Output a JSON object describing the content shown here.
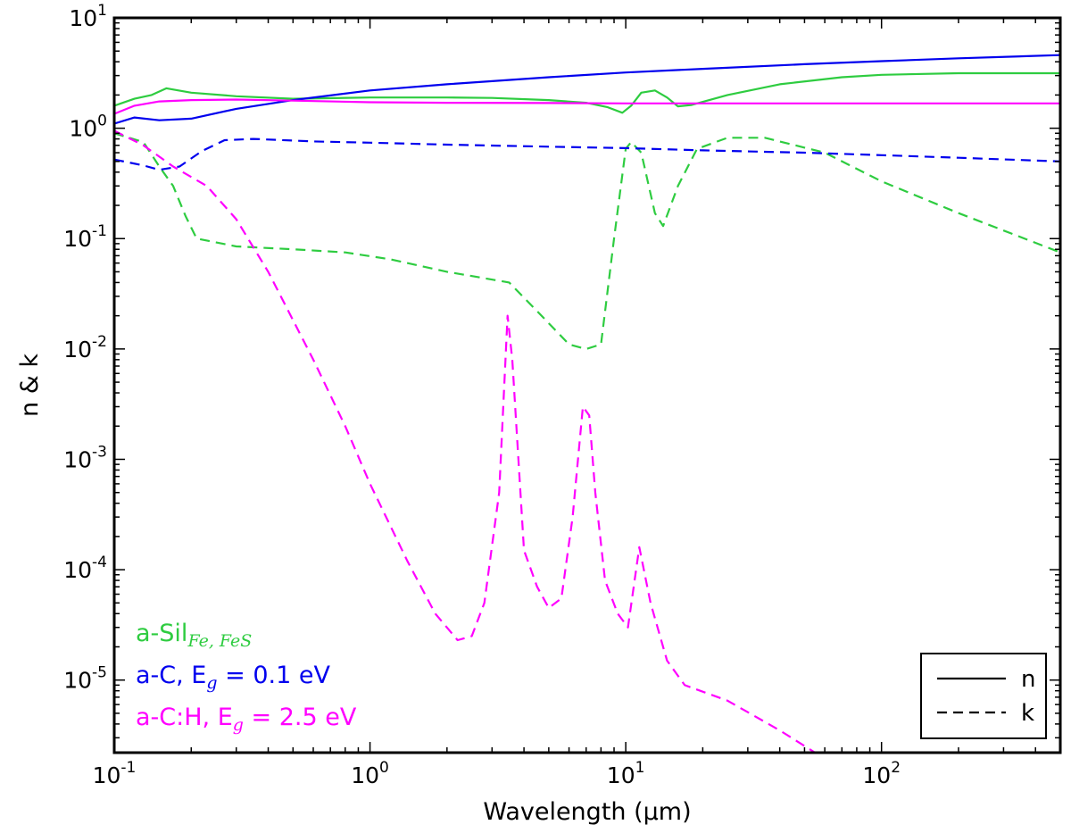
{
  "chart_data": {
    "type": "line",
    "title": "",
    "xlabel": "Wavelength (μm)",
    "ylabel": "n & k",
    "xscale": "log",
    "yscale": "log",
    "xlim": [
      0.1,
      500
    ],
    "ylim": [
      2.2e-06,
      10
    ],
    "x_ticks": [
      {
        "base": "10",
        "exp": "-1",
        "value": 0.1
      },
      {
        "base": "10",
        "exp": "0",
        "value": 1
      },
      {
        "base": "10",
        "exp": "1",
        "value": 10
      },
      {
        "base": "10",
        "exp": "2",
        "value": 100
      }
    ],
    "y_ticks": [
      {
        "base": "10",
        "exp": "1",
        "value": 10
      },
      {
        "base": "10",
        "exp": "0",
        "value": 1
      },
      {
        "base": "10",
        "exp": "-1",
        "value": 0.1
      },
      {
        "base": "10",
        "exp": "-2",
        "value": 0.01
      },
      {
        "base": "10",
        "exp": "-3",
        "value": 0.001
      },
      {
        "base": "10",
        "exp": "-4",
        "value": 0.0001
      },
      {
        "base": "10",
        "exp": "-5",
        "value": 1e-05
      }
    ],
    "legend": {
      "position": "bottom-right",
      "entries": [
        {
          "label": "n",
          "style": "solid"
        },
        {
          "label": "k",
          "style": "dashed"
        }
      ]
    },
    "materials": [
      {
        "name": "a-Sil",
        "sub": "Fe, FeS",
        "color": "#2ecc40"
      },
      {
        "name": "a-C, E",
        "sub": "g",
        "suffix": " = 0.1 eV",
        "color": "#0000ee"
      },
      {
        "name": "a-C:H, E",
        "sub": "g",
        "suffix": " = 2.5 eV",
        "color": "#ff00ff"
      }
    ],
    "series": [
      {
        "name": "a-SilFe,FeS n",
        "material": 0,
        "style": "solid",
        "points": [
          [
            0.1,
            1.6
          ],
          [
            0.12,
            1.85
          ],
          [
            0.14,
            2.0
          ],
          [
            0.16,
            2.3
          ],
          [
            0.2,
            2.1
          ],
          [
            0.3,
            1.95
          ],
          [
            0.5,
            1.85
          ],
          [
            1,
            1.9
          ],
          [
            2,
            1.9
          ],
          [
            3,
            1.88
          ],
          [
            5,
            1.8
          ],
          [
            7,
            1.7
          ],
          [
            8.5,
            1.55
          ],
          [
            9.7,
            1.38
          ],
          [
            10.5,
            1.6
          ],
          [
            11.5,
            2.1
          ],
          [
            13,
            2.2
          ],
          [
            14.5,
            1.9
          ],
          [
            16,
            1.58
          ],
          [
            18,
            1.62
          ],
          [
            25,
            2.0
          ],
          [
            40,
            2.5
          ],
          [
            70,
            2.9
          ],
          [
            100,
            3.05
          ],
          [
            200,
            3.15
          ],
          [
            500,
            3.15
          ]
        ]
      },
      {
        "name": "a-SilFe,FeS k",
        "material": 0,
        "style": "dashed",
        "points": [
          [
            0.1,
            0.9
          ],
          [
            0.13,
            0.75
          ],
          [
            0.15,
            0.45
          ],
          [
            0.17,
            0.3
          ],
          [
            0.19,
            0.16
          ],
          [
            0.21,
            0.1
          ],
          [
            0.3,
            0.085
          ],
          [
            0.5,
            0.08
          ],
          [
            0.8,
            0.075
          ],
          [
            1.2,
            0.065
          ],
          [
            2,
            0.05
          ],
          [
            3.5,
            0.04
          ],
          [
            4.5,
            0.022
          ],
          [
            6,
            0.011
          ],
          [
            7,
            0.01
          ],
          [
            8,
            0.011
          ],
          [
            9,
            0.1
          ],
          [
            10,
            0.65
          ],
          [
            10.5,
            0.75
          ],
          [
            11.5,
            0.6
          ],
          [
            13,
            0.17
          ],
          [
            14,
            0.13
          ],
          [
            16,
            0.3
          ],
          [
            19,
            0.65
          ],
          [
            25,
            0.82
          ],
          [
            35,
            0.82
          ],
          [
            60,
            0.6
          ],
          [
            100,
            0.33
          ],
          [
            200,
            0.17
          ],
          [
            500,
            0.075
          ]
        ]
      },
      {
        "name": "a-C Eg=0.1 n",
        "material": 1,
        "style": "solid",
        "points": [
          [
            0.1,
            1.1
          ],
          [
            0.12,
            1.25
          ],
          [
            0.15,
            1.18
          ],
          [
            0.2,
            1.22
          ],
          [
            0.3,
            1.5
          ],
          [
            0.5,
            1.8
          ],
          [
            1,
            2.2
          ],
          [
            2,
            2.5
          ],
          [
            5,
            2.9
          ],
          [
            10,
            3.2
          ],
          [
            20,
            3.45
          ],
          [
            50,
            3.8
          ],
          [
            100,
            4.05
          ],
          [
            200,
            4.3
          ],
          [
            500,
            4.6
          ]
        ]
      },
      {
        "name": "a-C Eg=0.1 k",
        "material": 1,
        "style": "dashed",
        "points": [
          [
            0.1,
            0.52
          ],
          [
            0.13,
            0.46
          ],
          [
            0.15,
            0.42
          ],
          [
            0.18,
            0.45
          ],
          [
            0.22,
            0.62
          ],
          [
            0.27,
            0.78
          ],
          [
            0.35,
            0.8
          ],
          [
            0.6,
            0.76
          ],
          [
            1,
            0.74
          ],
          [
            2,
            0.71
          ],
          [
            5,
            0.68
          ],
          [
            10,
            0.66
          ],
          [
            20,
            0.63
          ],
          [
            50,
            0.6
          ],
          [
            100,
            0.57
          ],
          [
            200,
            0.54
          ],
          [
            500,
            0.5
          ]
        ]
      },
      {
        "name": "a-C:H Eg=2.5 n",
        "material": 2,
        "style": "solid",
        "points": [
          [
            0.1,
            1.35
          ],
          [
            0.12,
            1.6
          ],
          [
            0.15,
            1.75
          ],
          [
            0.2,
            1.8
          ],
          [
            0.3,
            1.82
          ],
          [
            0.5,
            1.78
          ],
          [
            1,
            1.72
          ],
          [
            2,
            1.7
          ],
          [
            5,
            1.69
          ],
          [
            10,
            1.68
          ],
          [
            100,
            1.68
          ],
          [
            500,
            1.68
          ]
        ]
      },
      {
        "name": "a-C:H Eg=2.5 k",
        "material": 2,
        "style": "dashed",
        "points": [
          [
            0.1,
            0.95
          ],
          [
            0.13,
            0.7
          ],
          [
            0.17,
            0.45
          ],
          [
            0.23,
            0.3
          ],
          [
            0.3,
            0.15
          ],
          [
            0.4,
            0.05
          ],
          [
            0.6,
            0.008
          ],
          [
            0.8,
            0.002
          ],
          [
            1,
            0.0006
          ],
          [
            1.4,
            0.00012
          ],
          [
            1.8,
            4e-05
          ],
          [
            2.2,
            2.3e-05
          ],
          [
            2.5,
            2.5e-05
          ],
          [
            2.8,
            5e-05
          ],
          [
            3.2,
            0.0005
          ],
          [
            3.45,
            0.02
          ],
          [
            3.6,
            0.008
          ],
          [
            4,
            0.00015
          ],
          [
            4.5,
            7e-05
          ],
          [
            5,
            4.5e-05
          ],
          [
            5.6,
            5.5e-05
          ],
          [
            6.2,
            0.0003
          ],
          [
            6.8,
            0.003
          ],
          [
            7.2,
            0.0025
          ],
          [
            7.6,
            0.0005
          ],
          [
            8.3,
            8e-05
          ],
          [
            9.3,
            4e-05
          ],
          [
            10.2,
            3e-05
          ],
          [
            11.3,
            0.00016
          ],
          [
            12.5,
            5e-05
          ],
          [
            14.5,
            1.5e-05
          ],
          [
            17,
            9e-06
          ],
          [
            25,
            6.5e-06
          ],
          [
            40,
            3.5e-06
          ],
          [
            55,
            2.2e-06
          ]
        ]
      }
    ]
  }
}
